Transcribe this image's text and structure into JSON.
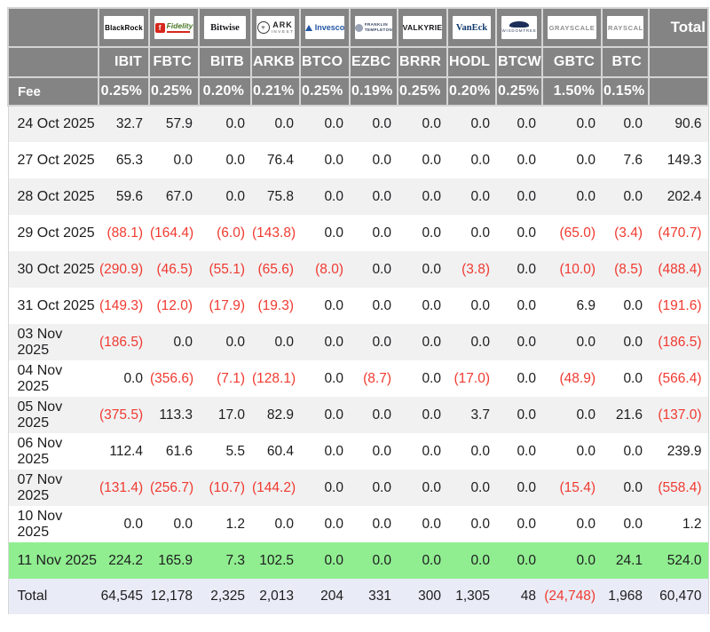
{
  "table": {
    "total_header": "Total",
    "fee_label": "Fee",
    "funds": [
      {
        "ticker": "IBIT",
        "fee": "0.25%",
        "brand": "blackrock",
        "logo_text": "BlackRock"
      },
      {
        "ticker": "FBTC",
        "fee": "0.25%",
        "brand": "fidelity",
        "logo_text": "Fidelity",
        "logo_icon": "f"
      },
      {
        "ticker": "BITB",
        "fee": "0.20%",
        "brand": "bitwise",
        "logo_text": "Bitwise"
      },
      {
        "ticker": "ARKB",
        "fee": "0.21%",
        "brand": "ark",
        "logo_text": "ARK",
        "logo_sub": "INVEST"
      },
      {
        "ticker": "BTCO",
        "fee": "0.25%",
        "brand": "invesco",
        "logo_text": "Invesco"
      },
      {
        "ticker": "EZBC",
        "fee": "0.19%",
        "brand": "franklin",
        "logo_lines": [
          "FRANKLIN",
          "TEMPLETON"
        ]
      },
      {
        "ticker": "BRRR",
        "fee": "0.25%",
        "brand": "valkyrie",
        "logo_text": "VALKYRIE"
      },
      {
        "ticker": "HODL",
        "fee": "0.20%",
        "brand": "vaneck",
        "logo_text": "VanEck"
      },
      {
        "ticker": "BTCW",
        "fee": "0.25%",
        "brand": "wisdomtree",
        "logo_text": "WISDOMTREE"
      },
      {
        "ticker": "GBTC",
        "fee": "1.50%",
        "brand": "grayscale",
        "logo_text": "GRAYSCALE"
      },
      {
        "ticker": "BTC",
        "fee": "0.15%",
        "brand": "grayscale",
        "logo_text": "GRAYSCALE"
      }
    ],
    "rows": [
      {
        "date": "24 Oct 2025",
        "values": [
          "32.7",
          "57.9",
          "0.0",
          "0.0",
          "0.0",
          "0.0",
          "0.0",
          "0.0",
          "0.0",
          "0.0",
          "0.0"
        ],
        "total": "90.6",
        "highlight": false
      },
      {
        "date": "27 Oct 2025",
        "values": [
          "65.3",
          "0.0",
          "0.0",
          "76.4",
          "0.0",
          "0.0",
          "0.0",
          "0.0",
          "0.0",
          "0.0",
          "7.6"
        ],
        "total": "149.3",
        "highlight": false
      },
      {
        "date": "28 Oct 2025",
        "values": [
          "59.6",
          "67.0",
          "0.0",
          "75.8",
          "0.0",
          "0.0",
          "0.0",
          "0.0",
          "0.0",
          "0.0",
          "0.0"
        ],
        "total": "202.4",
        "highlight": false
      },
      {
        "date": "29 Oct 2025",
        "values": [
          "(88.1)",
          "(164.4)",
          "(6.0)",
          "(143.8)",
          "0.0",
          "0.0",
          "0.0",
          "0.0",
          "0.0",
          "(65.0)",
          "(3.4)"
        ],
        "total": "(470.7)",
        "highlight": false
      },
      {
        "date": "30 Oct 2025",
        "values": [
          "(290.9)",
          "(46.5)",
          "(55.1)",
          "(65.6)",
          "(8.0)",
          "0.0",
          "0.0",
          "(3.8)",
          "0.0",
          "(10.0)",
          "(8.5)"
        ],
        "total": "(488.4)",
        "highlight": false
      },
      {
        "date": "31 Oct 2025",
        "values": [
          "(149.3)",
          "(12.0)",
          "(17.9)",
          "(19.3)",
          "0.0",
          "0.0",
          "0.0",
          "0.0",
          "0.0",
          "6.9",
          "0.0"
        ],
        "total": "(191.6)",
        "highlight": false
      },
      {
        "date": "03 Nov 2025",
        "values": [
          "(186.5)",
          "0.0",
          "0.0",
          "0.0",
          "0.0",
          "0.0",
          "0.0",
          "0.0",
          "0.0",
          "0.0",
          "0.0"
        ],
        "total": "(186.5)",
        "highlight": false
      },
      {
        "date": "04 Nov 2025",
        "values": [
          "0.0",
          "(356.6)",
          "(7.1)",
          "(128.1)",
          "0.0",
          "(8.7)",
          "0.0",
          "(17.0)",
          "0.0",
          "(48.9)",
          "0.0"
        ],
        "total": "(566.4)",
        "highlight": false
      },
      {
        "date": "05 Nov 2025",
        "values": [
          "(375.5)",
          "113.3",
          "17.0",
          "82.9",
          "0.0",
          "0.0",
          "0.0",
          "3.7",
          "0.0",
          "0.0",
          "21.6"
        ],
        "total": "(137.0)",
        "highlight": false
      },
      {
        "date": "06 Nov 2025",
        "values": [
          "112.4",
          "61.6",
          "5.5",
          "60.4",
          "0.0",
          "0.0",
          "0.0",
          "0.0",
          "0.0",
          "0.0",
          "0.0"
        ],
        "total": "239.9",
        "highlight": false
      },
      {
        "date": "07 Nov 2025",
        "values": [
          "(131.4)",
          "(256.7)",
          "(10.7)",
          "(144.2)",
          "0.0",
          "0.0",
          "0.0",
          "0.0",
          "0.0",
          "(15.4)",
          "0.0"
        ],
        "total": "(558.4)",
        "highlight": false
      },
      {
        "date": "10 Nov 2025",
        "values": [
          "0.0",
          "0.0",
          "1.2",
          "0.0",
          "0.0",
          "0.0",
          "0.0",
          "0.0",
          "0.0",
          "0.0",
          "0.0"
        ],
        "total": "1.2",
        "highlight": false
      },
      {
        "date": "11 Nov 2025",
        "values": [
          "224.2",
          "165.9",
          "7.3",
          "102.5",
          "0.0",
          "0.0",
          "0.0",
          "0.0",
          "0.0",
          "0.0",
          "24.1"
        ],
        "total": "524.0",
        "highlight": true
      }
    ],
    "total_row": {
      "label": "Total",
      "values": [
        "64,545",
        "12,178",
        "2,325",
        "2,013",
        "204",
        "331",
        "300",
        "1,305",
        "48",
        "(24,748)",
        "1,968"
      ],
      "total": "60,470"
    }
  },
  "colors": {
    "header_bg": "#848484",
    "header_text": "#ffffff",
    "header_grid": "#d4d4d4",
    "stripe_bg": "#f1f1f2",
    "white_bg": "#ffffff",
    "highlight_bg": "#90ee90",
    "total_bg": "#e9ecf6",
    "negative": "#f03a30",
    "text": "#1d1d1f"
  }
}
